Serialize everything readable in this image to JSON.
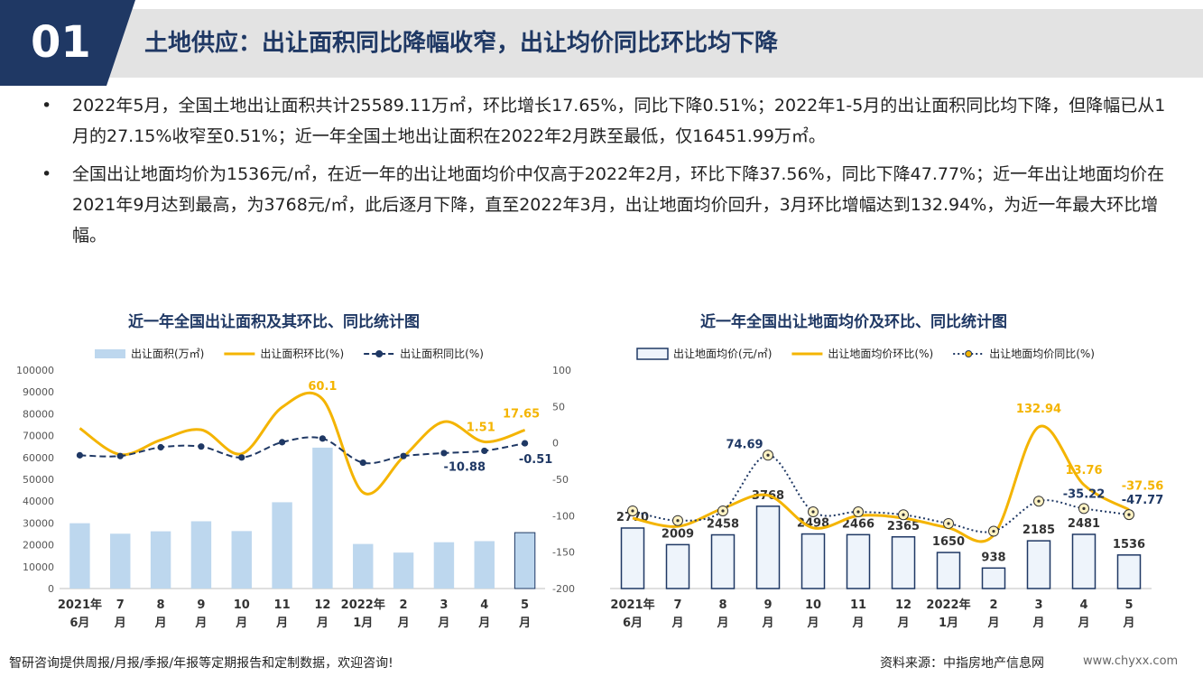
{
  "header": {
    "badge": "01",
    "title": "土地供应：出让面积同比降幅收窄，出让均价同比环比均下降",
    "colors": {
      "navy": "#1f3864",
      "band": "#e3e3e3"
    }
  },
  "bullets": [
    {
      "text": "2022年5月，全国土地出让面积共计25589.11万㎡，环比增长17.65%，同比下降0.51%；2022年1-5月的出让面积同比均下降，但降幅已从1月的27.15%收窄至0.51%；近一年全国土地出让面积在2022年2月跌至最低，仅16451.99万㎡。"
    },
    {
      "text": "全国出让地面均价为1536元/㎡，在近一年的出让地面均价中仅高于2022年2月，环比下降37.56%，同比下降47.77%；近一年出让地面均价在2021年9月达到最高，为3768元/㎡，此后逐月下降，直至2022年3月，出让地面均价回升，3月环比增幅达到132.94%，为近一年最大环比增幅。"
    }
  ],
  "chart_data": [
    {
      "type": "bar",
      "title": "近一年全国出让面积及其环比、同比统计图",
      "categories": [
        [
          "2021年",
          "6月"
        ],
        [
          "7",
          "月"
        ],
        [
          "8",
          "月"
        ],
        [
          "9",
          "月"
        ],
        [
          "10",
          "月"
        ],
        [
          "11",
          "月"
        ],
        [
          "12",
          "月"
        ],
        [
          "2022年",
          "1月"
        ],
        [
          "2",
          "月"
        ],
        [
          "3",
          "月"
        ],
        [
          "4",
          "月"
        ],
        [
          "5",
          "月"
        ]
      ],
      "series": [
        {
          "name": "出让面积(万㎡)",
          "kind": "bar",
          "axis": "left",
          "color": "#bdd7ee",
          "values": [
            29900,
            25100,
            26200,
            30800,
            26300,
            39500,
            64500,
            20400,
            16452,
            21200,
            21700,
            25589
          ]
        },
        {
          "name": "出让面积环比(%)",
          "kind": "line",
          "axis": "right",
          "color": "#f4b400",
          "values": [
            20,
            -16,
            4,
            18,
            -15,
            49,
            60.1,
            -68,
            -19,
            29,
            1.51,
            17.65
          ]
        },
        {
          "name": "出让面积同比(%)",
          "kind": "line-dashed",
          "axis": "right",
          "color": "#1f3864",
          "values": [
            -17,
            -18,
            -6,
            -5,
            -20,
            1,
            6,
            -27.15,
            -18,
            -14,
            -10.88,
            -0.51
          ]
        }
      ],
      "labels": [
        {
          "series": 1,
          "index": 6,
          "text": "60.1",
          "color": "#f4b400"
        },
        {
          "series": 1,
          "index": 10,
          "text": "1.51",
          "color": "#f4b400"
        },
        {
          "series": 1,
          "index": 11,
          "text": "17.65",
          "color": "#f4b400"
        },
        {
          "series": 2,
          "index": 10,
          "text": "-10.88",
          "color": "#1f3864"
        },
        {
          "series": 2,
          "index": 11,
          "text": "-0.51",
          "color": "#1f3864"
        }
      ],
      "yleft": {
        "min": 0,
        "max": 100000,
        "step": 10000,
        "ticks": [
          "0",
          "10000",
          "20000",
          "30000",
          "40000",
          "50000",
          "60000",
          "70000",
          "80000",
          "90000",
          "100000"
        ]
      },
      "yright": {
        "min": -200,
        "max": 100,
        "step": 50,
        "ticks": [
          "-200",
          "-150",
          "-100",
          "-50",
          "0",
          "50",
          "100"
        ]
      }
    },
    {
      "type": "bar",
      "title": "近一年全国出让地面均价及环比、同比统计图",
      "categories": [
        [
          "2021年",
          "6月"
        ],
        [
          "7",
          "月"
        ],
        [
          "8",
          "月"
        ],
        [
          "9",
          "月"
        ],
        [
          "10",
          "月"
        ],
        [
          "11",
          "月"
        ],
        [
          "12",
          "月"
        ],
        [
          "2022年",
          "1月"
        ],
        [
          "2",
          "月"
        ],
        [
          "3",
          "月"
        ],
        [
          "4",
          "月"
        ],
        [
          "5",
          "月"
        ]
      ],
      "series": [
        {
          "name": "出让地面均价(元/㎡)",
          "kind": "bar-outline",
          "axis": "left",
          "color": "#1f3864",
          "fill": "#eef4fb",
          "values": [
            2770,
            2009,
            2458,
            3768,
            2498,
            2466,
            2365,
            1650,
            938,
            2185,
            2481,
            1536
          ],
          "value_labels": [
            "2770",
            "2009",
            "2458",
            "3768",
            "2498",
            "2466",
            "2365",
            "1650",
            "938",
            "2185",
            "2481",
            "1536"
          ]
        },
        {
          "name": "出让地面均价环比(%)",
          "kind": "line",
          "axis": "right",
          "color": "#f4b400",
          "values": [
            -55,
            -72,
            -35,
            -8,
            -75,
            -50,
            -55,
            -75,
            -90,
            132.94,
            13.76,
            -37.56
          ]
        },
        {
          "name": "出让地面均价同比(%)",
          "kind": "line-dotted-circle",
          "axis": "right",
          "color": "#1f3864",
          "values": [
            -40,
            -60,
            -40,
            74.69,
            -42,
            -42,
            -48,
            -66,
            -82,
            -20,
            -35.22,
            -47.77
          ]
        }
      ],
      "labels": [
        {
          "series": 2,
          "index": 3,
          "text": "74.69",
          "color": "#1f3864"
        },
        {
          "series": 1,
          "index": 9,
          "text": "132.94",
          "color": "#f4b400"
        },
        {
          "series": 1,
          "index": 10,
          "text": "13.76",
          "color": "#f4b400"
        },
        {
          "series": 1,
          "index": 11,
          "text": "-37.56",
          "color": "#f4b400"
        },
        {
          "series": 2,
          "index": 10,
          "text": "-35.22",
          "color": "#1f3864"
        },
        {
          "series": 2,
          "index": 11,
          "text": "-47.77",
          "color": "#1f3864"
        }
      ],
      "yleft": {
        "min": 0,
        "max": 10000
      },
      "yright": {
        "min": -200,
        "max": 250
      }
    }
  ],
  "footer": {
    "left": "智研咨询提供周报/月报/季报/年报等定期报告和定制数据，欢迎咨询!",
    "source": "资料来源：中指房地产信息网",
    "url": "www.chyxx.com"
  }
}
